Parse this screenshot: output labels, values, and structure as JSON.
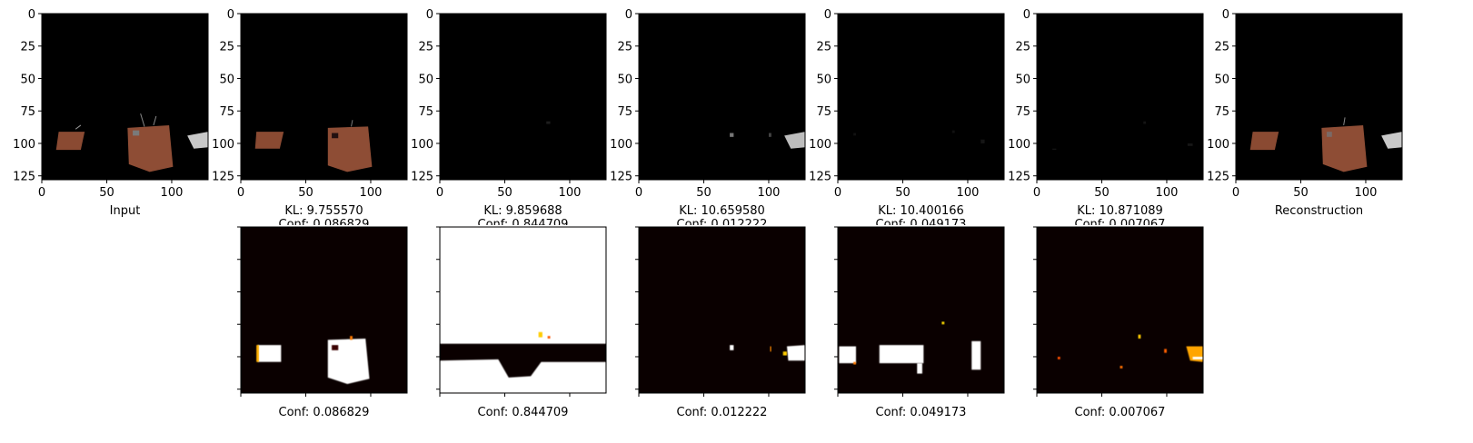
{
  "figure": {
    "bottom_labels": [
      "Input",
      "Reconstruction"
    ],
    "colors": {
      "background": "#000000",
      "axis": "#000000",
      "hot_white": "#ffffff",
      "hot_dark": "#0a0000"
    }
  },
  "chart_data": [
    {
      "type": "image",
      "label": "Input",
      "xlim": [
        0,
        128
      ],
      "ylim": [
        128,
        0
      ],
      "xticks": [
        "0",
        "50",
        "100"
      ],
      "yticks": [
        "0",
        "25",
        "50",
        "75",
        "100",
        "125"
      ]
    },
    {
      "type": "image",
      "title_lines": [
        "KL: 9.755570",
        "Conf: 0.086829"
      ],
      "xticks": [
        "0",
        "50",
        "100"
      ],
      "yticks": [
        "0",
        "25",
        "50",
        "75",
        "100",
        "125"
      ]
    },
    {
      "type": "image",
      "title_lines": [
        "KL: 9.859688",
        "Conf: 0.844709"
      ],
      "xticks": [
        "0",
        "50",
        "100"
      ],
      "yticks": [
        "0",
        "25",
        "50",
        "75",
        "100",
        "125"
      ]
    },
    {
      "type": "image",
      "title_lines": [
        "KL: 10.659580",
        "Conf: 0.012222"
      ],
      "xticks": [
        "0",
        "50",
        "100"
      ],
      "yticks": [
        "0",
        "25",
        "50",
        "75",
        "100",
        "125"
      ]
    },
    {
      "type": "image",
      "title_lines": [
        "KL: 10.400166",
        "Conf: 0.049173"
      ],
      "xticks": [
        "0",
        "50",
        "100"
      ],
      "yticks": [
        "0",
        "25",
        "50",
        "75",
        "100",
        "125"
      ]
    },
    {
      "type": "image",
      "title_lines": [
        "KL: 10.871089",
        "Conf: 0.007067"
      ],
      "xticks": [
        "0",
        "50",
        "100"
      ],
      "yticks": [
        "0",
        "25",
        "50",
        "75",
        "100",
        "125"
      ]
    },
    {
      "type": "image",
      "label": "Reconstruction",
      "xticks": [
        "0",
        "50",
        "100"
      ],
      "yticks": [
        "0",
        "25",
        "50",
        "75",
        "100",
        "125"
      ]
    },
    {
      "type": "heatmap",
      "label": "Conf: 0.086829",
      "colormap": "hot"
    },
    {
      "type": "heatmap",
      "label": "Conf: 0.844709",
      "colormap": "hot"
    },
    {
      "type": "heatmap",
      "label": "Conf: 0.012222",
      "colormap": "hot"
    },
    {
      "type": "heatmap",
      "label": "Conf: 0.049173",
      "colormap": "hot"
    },
    {
      "type": "heatmap",
      "label": "Conf: 0.007067",
      "colormap": "hot"
    }
  ]
}
